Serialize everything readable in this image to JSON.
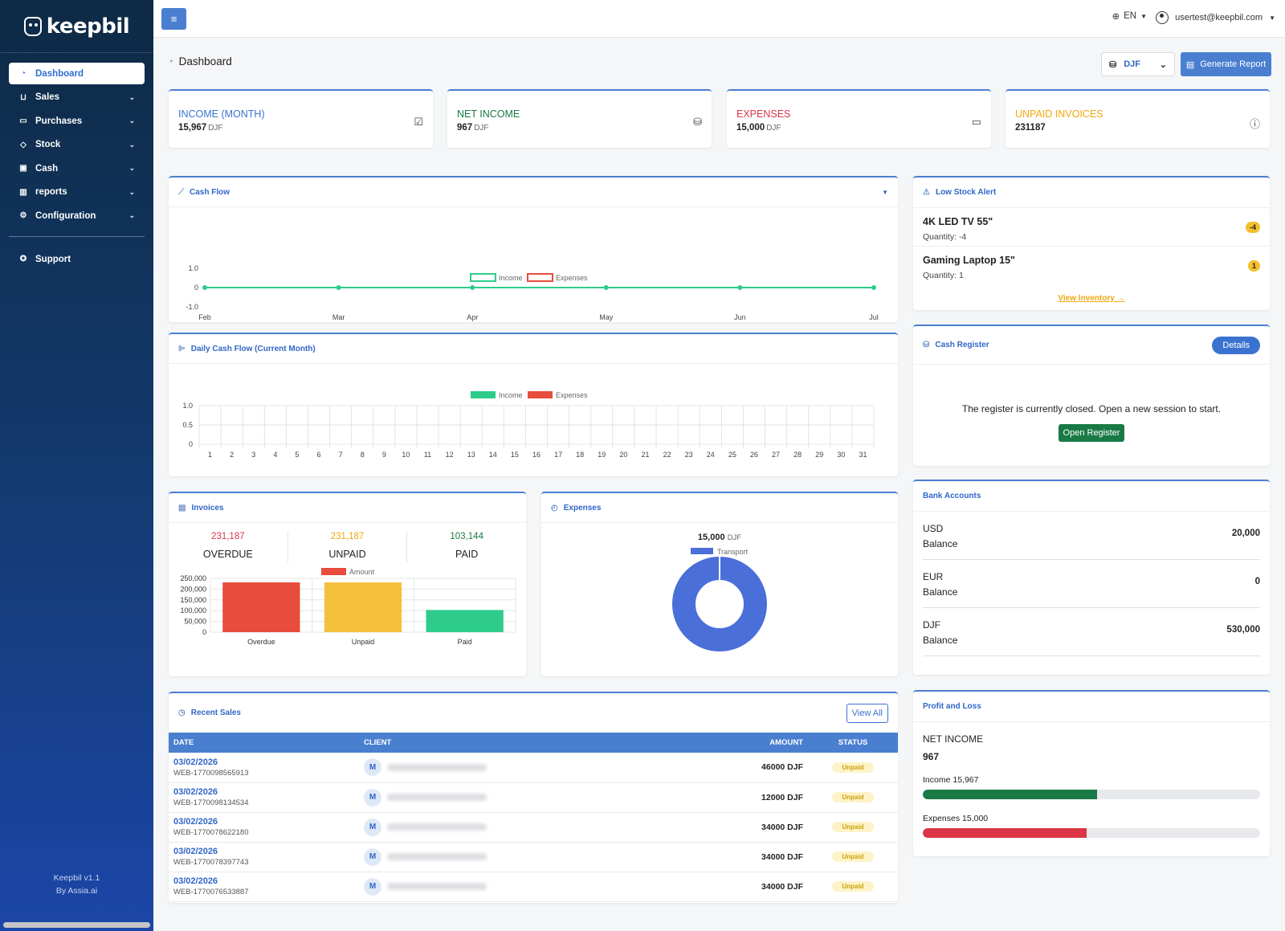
{
  "app": {
    "logo": "keepbil",
    "footer_version": "Keepbil v1.1",
    "footer_by": "By Assia.ai"
  },
  "sidebar": {
    "items": [
      {
        "label": "Dashboard",
        "icon": "gauge-icon"
      },
      {
        "label": "Sales",
        "icon": "cart-icon"
      },
      {
        "label": "Purchases",
        "icon": "briefcase-icon"
      },
      {
        "label": "Stock",
        "icon": "box-icon"
      },
      {
        "label": "Cash",
        "icon": "cash-icon"
      },
      {
        "label": "reports",
        "icon": "bar-chart-icon"
      },
      {
        "label": "Configuration",
        "icon": "gear-icon"
      }
    ],
    "support": "Support"
  },
  "topbar": {
    "language": "EN",
    "user_email": "usertest@keepbil.com"
  },
  "header": {
    "title": "Dashboard",
    "currency": "DJF",
    "generate_report": "Generate Report"
  },
  "stats": [
    {
      "title": "INCOME (MONTH)",
      "value": "15,967",
      "unit": "DJF",
      "color": "#3a73cf"
    },
    {
      "title": "NET INCOME",
      "value": "967",
      "unit": "DJF",
      "color": "#197a46"
    },
    {
      "title": "EXPENSES",
      "value": "15,000",
      "unit": "DJF",
      "color": "#dc3545"
    },
    {
      "title": "UNPAID INVOICES",
      "value": "231187",
      "unit": "",
      "color": "#f2a70f"
    }
  ],
  "cash_flow": {
    "title": "Cash Flow",
    "legend_income": "Income",
    "legend_expenses": "Expenses"
  },
  "daily_cash_flow": {
    "title": "Daily Cash Flow (Current Month)",
    "legend_income": "Income",
    "legend_expenses": "Expenses"
  },
  "invoices": {
    "title": "Invoices",
    "overdue_value": "231,187",
    "overdue_label": "OVERDUE",
    "unpaid_value": "231,187",
    "unpaid_label": "UNPAID",
    "paid_value": "103,144",
    "paid_label": "PAID",
    "legend": "Amount"
  },
  "expenses_card": {
    "title": "Expenses",
    "total": "15,000",
    "unit": "DJF",
    "legend": "Transport"
  },
  "low_stock": {
    "title": "Low Stock Alert",
    "items": [
      {
        "name": "4K LED TV 55\"",
        "qty": "Quantity: -4",
        "badge": "-4"
      },
      {
        "name": "Gaming Laptop 15\"",
        "qty": "Quantity: 1",
        "badge": "1"
      }
    ],
    "view_link": "View Inventory →"
  },
  "cash_register": {
    "title": "Cash Register",
    "details": "Details",
    "message": "The register is currently closed. Open a new session to start.",
    "open_button": "Open Register"
  },
  "bank_accounts": {
    "title": "Bank Accounts",
    "accounts": [
      {
        "currency": "USD",
        "label": "Balance",
        "amount": "20,000"
      },
      {
        "currency": "EUR",
        "label": "Balance",
        "amount": "0"
      },
      {
        "currency": "DJF",
        "label": "Balance",
        "amount": "530,000"
      }
    ]
  },
  "profit_loss": {
    "title": "Profit and Loss",
    "net_label": "NET INCOME",
    "net_value": "967",
    "income_label": "Income 15,967",
    "income_fraction": 0.516,
    "expenses_label": "Expenses 15,000",
    "expenses_fraction": 0.485
  },
  "recent_sales": {
    "title": "Recent Sales",
    "view_all": "View All",
    "columns": {
      "date": "DATE",
      "client": "CLIENT",
      "amount": "AMOUNT",
      "status": "STATUS"
    },
    "rows": [
      {
        "date": "03/02/2026",
        "ref": "WEB-1770098565913",
        "avatar": "M",
        "amount": "46000 DJF",
        "status": "Unpaid"
      },
      {
        "date": "03/02/2026",
        "ref": "WEB-1770098134534",
        "avatar": "M",
        "amount": "12000 DJF",
        "status": "Unpaid"
      },
      {
        "date": "03/02/2026",
        "ref": "WEB-1770078622180",
        "avatar": "M",
        "amount": "34000 DJF",
        "status": "Unpaid"
      },
      {
        "date": "03/02/2026",
        "ref": "WEB-1770078397743",
        "avatar": "M",
        "amount": "34000 DJF",
        "status": "Unpaid"
      },
      {
        "date": "03/02/2026",
        "ref": "WEB-1770076533887",
        "avatar": "M",
        "amount": "34000 DJF",
        "status": "Unpaid"
      }
    ]
  },
  "chart_data": [
    {
      "type": "line",
      "title": "Cash Flow",
      "categories": [
        "Feb",
        "Mar",
        "Apr",
        "May",
        "Jun",
        "Jul"
      ],
      "series": [
        {
          "name": "Income",
          "values": [
            0,
            0,
            0,
            0,
            0,
            0
          ],
          "color": "#2ecc8a"
        },
        {
          "name": "Expenses",
          "values": [
            0,
            0,
            0,
            0,
            0,
            0
          ],
          "color": "#e74c3c"
        }
      ],
      "ylim": [
        -1.0,
        1.0
      ],
      "yticks": [
        "1.0",
        "0",
        "-1.0"
      ],
      "legend": "top"
    },
    {
      "type": "bar",
      "title": "Daily Cash Flow (Current Month)",
      "categories": [
        "1",
        "2",
        "3",
        "4",
        "5",
        "6",
        "7",
        "8",
        "9",
        "10",
        "11",
        "12",
        "13",
        "14",
        "15",
        "16",
        "17",
        "18",
        "19",
        "20",
        "21",
        "22",
        "23",
        "24",
        "25",
        "26",
        "27",
        "28",
        "29",
        "30",
        "31"
      ],
      "series": [
        {
          "name": "Income",
          "values": [
            0,
            0,
            0,
            0,
            0,
            0,
            0,
            0,
            0,
            0,
            0,
            0,
            0,
            0,
            0,
            0,
            0,
            0,
            0,
            0,
            0,
            0,
            0,
            0,
            0,
            0,
            0,
            0,
            0,
            0,
            0
          ],
          "color": "#2ecc8a"
        },
        {
          "name": "Expenses",
          "values": [
            0,
            0,
            0,
            0,
            0,
            0,
            0,
            0,
            0,
            0,
            0,
            0,
            0,
            0,
            0,
            0,
            0,
            0,
            0,
            0,
            0,
            0,
            0,
            0,
            0,
            0,
            0,
            0,
            0,
            0,
            0
          ],
          "color": "#e74c3c"
        }
      ],
      "ylim": [
        0,
        1.0
      ],
      "yticks": [
        "1.0",
        "0.5",
        "0"
      ],
      "legend": "top"
    },
    {
      "type": "bar",
      "title": "Invoices",
      "categories": [
        "Overdue",
        "Unpaid",
        "Paid"
      ],
      "series": [
        {
          "name": "Amount",
          "values": [
            231187,
            231187,
            103144
          ]
        }
      ],
      "colors": [
        "#e74c3c",
        "#f4c03b",
        "#2ecc8a"
      ],
      "ylim": [
        0,
        250000
      ],
      "yticks": [
        "250,000",
        "200,000",
        "150,000",
        "100,000",
        "50,000",
        "0"
      ],
      "legend": "top"
    },
    {
      "type": "pie",
      "title": "Expenses",
      "categories": [
        "Transport"
      ],
      "values": [
        15000
      ],
      "colors": [
        "#4a6fd8"
      ],
      "legend": "top"
    }
  ]
}
